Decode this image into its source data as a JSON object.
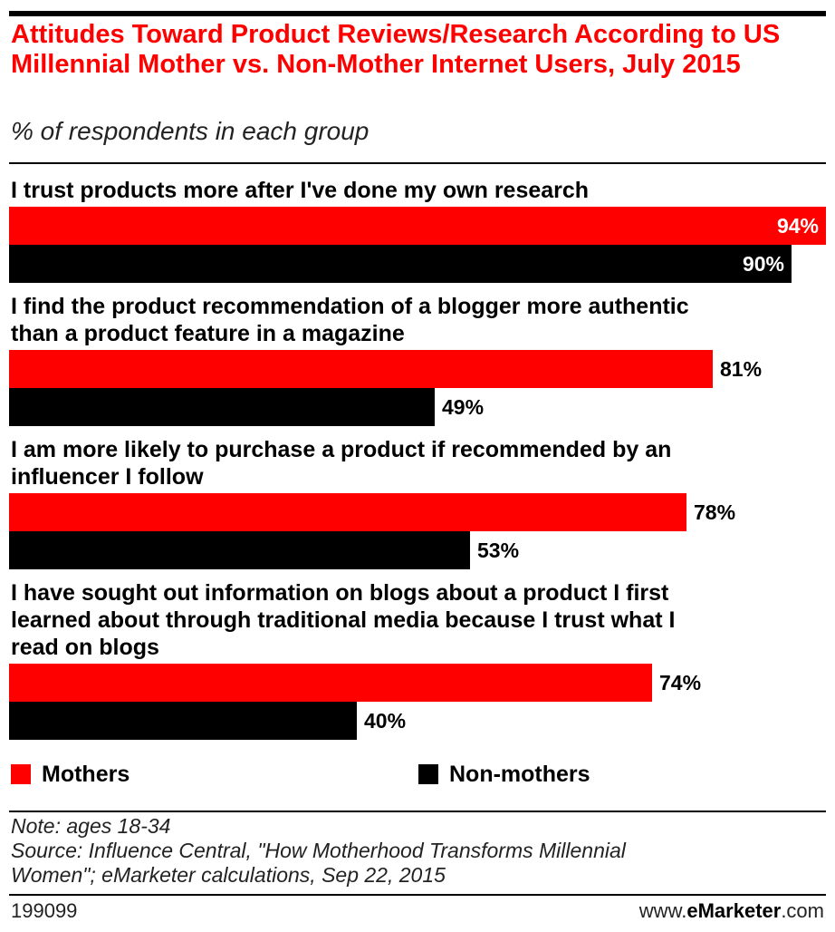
{
  "chart_data": {
    "type": "bar",
    "orientation": "horizontal",
    "title": "Attitudes Toward Product Reviews/Research According to US Millennial Mother vs. Non-Mother Internet Users, July 2015",
    "subtitle": "% of respondents in each group",
    "categories": [
      "I trust products more after I've done my own research",
      "I find the product recommendation of a blogger more authentic than a product feature in a magazine",
      "I am more likely to purchase a product if recommended by an influencer I follow",
      "I have sought out information on blogs about a product I first learned about through traditional media because I trust what I read on blogs"
    ],
    "series": [
      {
        "name": "Mothers",
        "values": [
          94,
          81,
          78,
          74
        ],
        "color": "#ff0000"
      },
      {
        "name": "Non-mothers",
        "values": [
          90,
          49,
          53,
          40
        ],
        "color": "#000000"
      }
    ],
    "value_suffix": "%",
    "xlim": [
      0,
      94
    ],
    "legend_position": "bottom",
    "grid": false
  },
  "notes": {
    "note": "Note: ages 18-34",
    "source_line1": "Source: Influence Central, \"How Motherhood Transforms Millennial",
    "source_line2": "Women\"; eMarketer calculations, Sep 22, 2015"
  },
  "footer": {
    "chart_id": "199099",
    "brand_prefix": "www.",
    "brand_name": "eMarketer",
    "brand_suffix": ".com"
  }
}
